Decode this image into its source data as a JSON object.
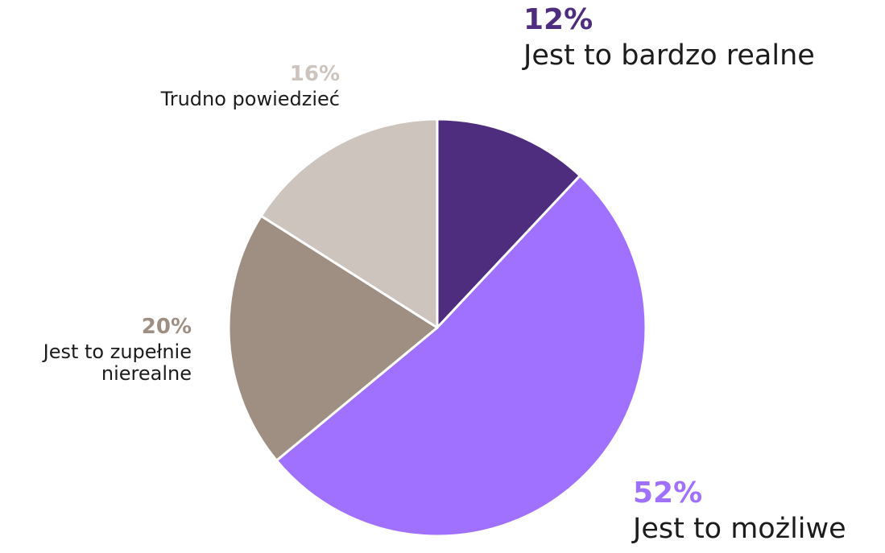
{
  "chart_data": {
    "type": "pie",
    "slices": [
      {
        "label": "Jest to bardzo realne",
        "value": 12,
        "value_label": "12%",
        "color": "#4e2d7f"
      },
      {
        "label": "Jest to możliwe",
        "value": 52,
        "value_label": "52%",
        "color": "#a070ff"
      },
      {
        "label": "Jest to zupełnie nierealne",
        "value": 20,
        "value_label": "20%",
        "color": "#9e8f82"
      },
      {
        "label": "Trudno powiedzieć",
        "value": 16,
        "value_label": "16%",
        "color": "#cdc4be"
      }
    ]
  }
}
